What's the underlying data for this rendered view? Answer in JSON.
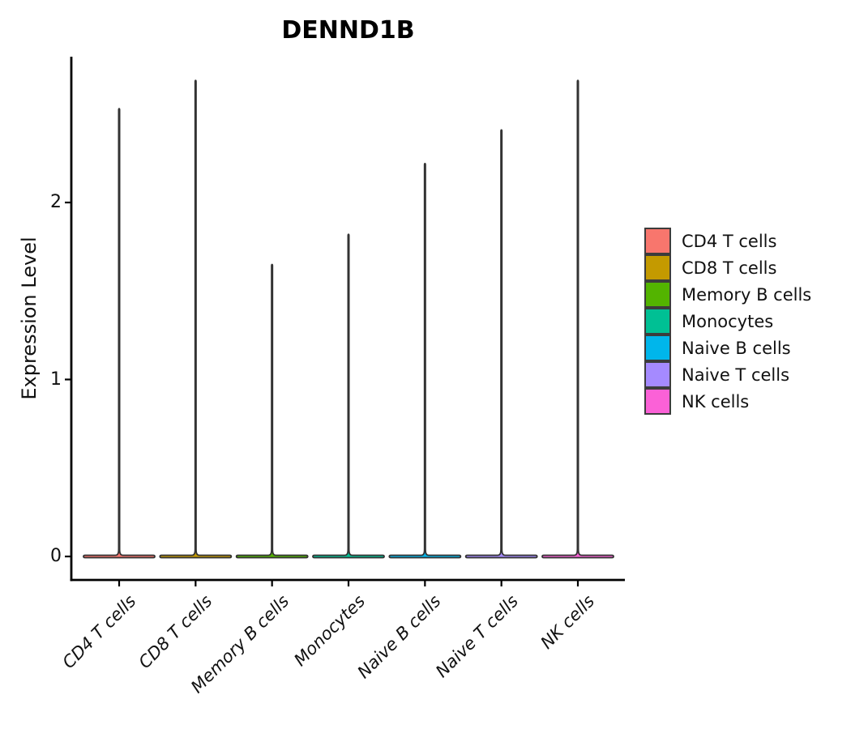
{
  "chart_data": {
    "type": "violin",
    "title": "DENND1B",
    "xlabel": "",
    "ylabel": "Expression Level",
    "categories": [
      "CD4 T cells",
      "CD8 T cells",
      "Memory B cells",
      "Monocytes",
      "Naive B cells",
      "Naive T cells",
      "NK cells"
    ],
    "colors": [
      "#F8766D",
      "#C49A00",
      "#53B400",
      "#00C094",
      "#00B6EB",
      "#A58AFF",
      "#FB61D7"
    ],
    "max_values": [
      2.53,
      2.69,
      1.65,
      1.82,
      2.22,
      2.41,
      2.69
    ],
    "bulk_value": 0,
    "y_ticks": [
      0,
      1,
      2
    ],
    "ylim": [
      -0.15,
      2.82
    ],
    "legend_position": "right",
    "grid": false,
    "outline_color": "#333333",
    "axis_color": "#000000",
    "shape_note": "Each violin is a flat wide density bar at expression 0 with a very thin spike extending to the category maximum"
  }
}
